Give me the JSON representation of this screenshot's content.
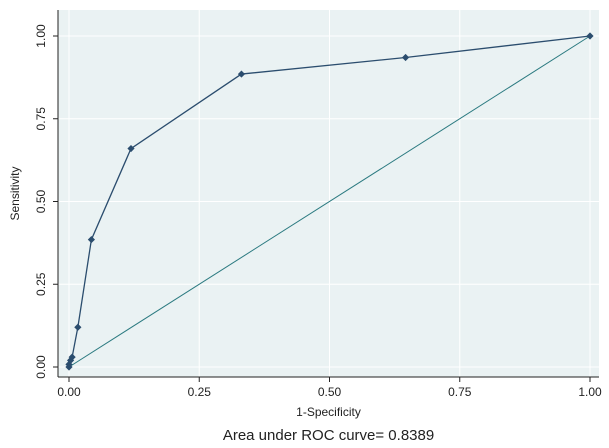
{
  "chart_data": {
    "type": "line",
    "title": "",
    "xlabel": "1-Specificity",
    "ylabel": "Sensitivity",
    "note": "Area under ROC curve= 0.8389",
    "xlim": [
      0,
      1
    ],
    "ylim": [
      0,
      1
    ],
    "x_ticks": [
      "0.00",
      "0.25",
      "0.50",
      "0.75",
      "1.00"
    ],
    "y_ticks": [
      "0.00",
      "0.25",
      "0.50",
      "0.75",
      "1.00"
    ],
    "grid": true,
    "legend": "none",
    "series": [
      {
        "x": [
          0.0,
          0.0,
          0.003,
          0.006,
          0.017,
          0.043,
          0.119,
          0.331,
          0.646,
          1.0
        ],
        "y": [
          0.0,
          0.008,
          0.02,
          0.03,
          0.12,
          0.385,
          0.66,
          0.885,
          0.935,
          1.0
        ],
        "color": "#2b4d6e"
      },
      {
        "x": [
          0,
          1
        ],
        "y": [
          0,
          1
        ],
        "color": "#2b7a80"
      }
    ],
    "colors": {
      "plot_background": "#eaf2f3",
      "grid": "#ffffff",
      "axis": "#222222"
    }
  }
}
